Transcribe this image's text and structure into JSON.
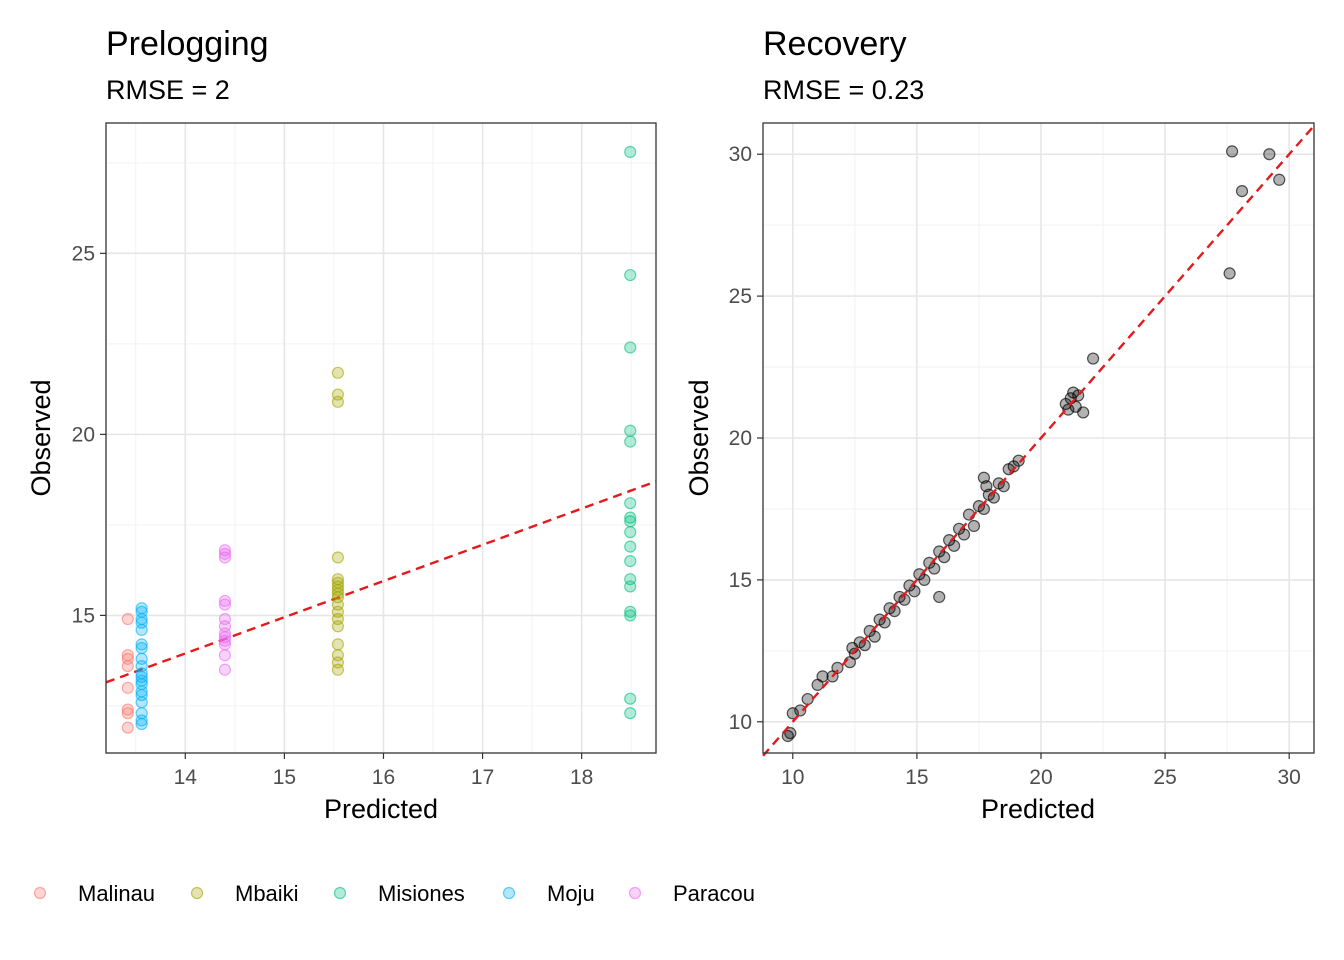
{
  "chart_data": [
    {
      "type": "scatter",
      "title": "Prelogging",
      "subtitle": "RMSE = 2",
      "xlabel": "Predicted",
      "ylabel": "Observed",
      "xlim": [
        13.2,
        18.75
      ],
      "ylim": [
        11.2,
        28.6
      ],
      "xticks": [
        14,
        15,
        16,
        17,
        18
      ],
      "yticks": [
        15,
        20,
        25
      ],
      "grid": true,
      "fit_line": {
        "style": "dashed",
        "color": "#e41a1c",
        "points": [
          [
            13.2,
            13.15
          ],
          [
            18.75,
            18.7
          ]
        ]
      },
      "series": [
        {
          "name": "Malinau",
          "color": "#F8766D",
          "x": 13.42,
          "y": [
            14.9,
            13.9,
            13.8,
            13.6,
            13.0,
            12.4,
            12.3,
            11.9
          ]
        },
        {
          "name": "Mbaiki",
          "color": "#A3A500",
          "x": 15.54,
          "y": [
            21.7,
            21.1,
            20.9,
            16.6,
            16.0,
            15.9,
            15.8,
            15.7,
            15.6,
            15.5,
            15.3,
            15.1,
            14.9,
            14.7,
            14.2,
            13.9,
            13.7,
            13.5
          ]
        },
        {
          "name": "Misiones",
          "color": "#00BF7D",
          "x": 18.49,
          "y": [
            27.8,
            24.4,
            22.4,
            20.1,
            19.8,
            18.1,
            17.7,
            17.6,
            17.3,
            16.9,
            16.5,
            16.0,
            15.8,
            15.1,
            15.0,
            12.7,
            12.3
          ]
        },
        {
          "name": "Moju",
          "color": "#00B0F6",
          "x": 13.56,
          "y": [
            15.2,
            15.1,
            14.9,
            14.8,
            14.6,
            14.2,
            14.1,
            13.8,
            13.6,
            13.4,
            13.3,
            13.2,
            13.1,
            12.9,
            12.8,
            12.6,
            12.3,
            12.1,
            12.0
          ]
        },
        {
          "name": "Paracou",
          "color": "#E76BF3",
          "x": 14.4,
          "y": [
            16.8,
            16.7,
            16.6,
            15.4,
            15.3,
            14.9,
            14.7,
            14.5,
            14.4,
            14.3,
            14.2,
            13.9,
            13.5
          ]
        }
      ]
    },
    {
      "type": "scatter",
      "title": "Recovery",
      "subtitle": "RMSE = 0.23",
      "xlabel": "Predicted",
      "ylabel": "Observed",
      "xlim": [
        8.8,
        31.0
      ],
      "ylim": [
        8.9,
        31.1
      ],
      "xticks": [
        10,
        15,
        20,
        25,
        30
      ],
      "yticks": [
        10,
        15,
        20,
        25,
        30
      ],
      "grid": true,
      "fit_line": {
        "style": "dashed",
        "color": "#e41a1c",
        "points": [
          [
            8.8,
            8.8
          ],
          [
            31.0,
            31.0
          ]
        ]
      },
      "series": [
        {
          "color": "#000000",
          "points": [
            [
              9.8,
              9.5
            ],
            [
              9.9,
              9.6
            ],
            [
              10.0,
              10.3
            ],
            [
              10.3,
              10.4
            ],
            [
              10.6,
              10.8
            ],
            [
              11.0,
              11.3
            ],
            [
              11.2,
              11.6
            ],
            [
              11.6,
              11.6
            ],
            [
              11.8,
              11.9
            ],
            [
              12.3,
              12.1
            ],
            [
              12.4,
              12.6
            ],
            [
              12.5,
              12.4
            ],
            [
              12.7,
              12.8
            ],
            [
              12.9,
              12.7
            ],
            [
              13.1,
              13.2
            ],
            [
              13.3,
              13.0
            ],
            [
              13.5,
              13.6
            ],
            [
              13.7,
              13.5
            ],
            [
              13.9,
              14.0
            ],
            [
              14.1,
              13.9
            ],
            [
              14.3,
              14.4
            ],
            [
              14.5,
              14.3
            ],
            [
              14.7,
              14.8
            ],
            [
              14.9,
              14.6
            ],
            [
              15.1,
              15.2
            ],
            [
              15.3,
              15.0
            ],
            [
              15.5,
              15.6
            ],
            [
              15.7,
              15.4
            ],
            [
              15.9,
              16.0
            ],
            [
              15.9,
              14.4
            ],
            [
              16.1,
              15.8
            ],
            [
              16.3,
              16.4
            ],
            [
              16.5,
              16.2
            ],
            [
              16.7,
              16.8
            ],
            [
              16.9,
              16.6
            ],
            [
              17.1,
              17.3
            ],
            [
              17.3,
              16.9
            ],
            [
              17.5,
              17.6
            ],
            [
              17.7,
              17.5
            ],
            [
              17.9,
              18.0
            ],
            [
              18.1,
              17.9
            ],
            [
              18.3,
              18.4
            ],
            [
              18.5,
              18.3
            ],
            [
              18.7,
              18.9
            ],
            [
              18.9,
              19.0
            ],
            [
              19.1,
              19.2
            ],
            [
              17.7,
              18.6
            ],
            [
              17.8,
              18.3
            ],
            [
              21.0,
              21.2
            ],
            [
              21.1,
              21.0
            ],
            [
              21.2,
              21.4
            ],
            [
              21.3,
              21.6
            ],
            [
              21.4,
              21.1
            ],
            [
              21.5,
              21.5
            ],
            [
              21.7,
              20.9
            ],
            [
              22.1,
              22.8
            ],
            [
              27.6,
              25.8
            ],
            [
              27.7,
              30.1
            ],
            [
              28.1,
              28.7
            ],
            [
              29.2,
              30.0
            ],
            [
              29.6,
              29.1
            ]
          ]
        }
      ]
    }
  ],
  "legend": {
    "placement": "bottom",
    "items": [
      {
        "label": "Malinau",
        "color": "#F8766D"
      },
      {
        "label": "Mbaiki",
        "color": "#A3A500"
      },
      {
        "label": "Misiones",
        "color": "#00BF7D"
      },
      {
        "label": "Moju",
        "color": "#00B0F6"
      },
      {
        "label": "Paracou",
        "color": "#E76BF3"
      }
    ]
  }
}
